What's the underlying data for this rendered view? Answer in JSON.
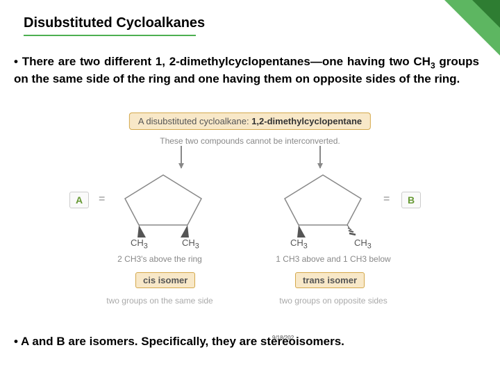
{
  "title": "Disubstituted Cycloalkanes",
  "bullet1_html": "• There are two different 1, 2-dimethylcyclopentanes—one having two CH<sub>3</sub> groups on the same side of the ring and one having them on opposite sides of the ring.",
  "banner": {
    "prefix": "A disubstituted cycloalkane: ",
    "bold": "1,2-dimethylcyclopentane",
    "bg": "#f8e8c8",
    "border": "#d4a84a"
  },
  "sub_banner": "These two compounds cannot be interconverted.",
  "left": {
    "label": "A",
    "ch3_a": "CH",
    "ch3_b": "CH",
    "ring_desc": "2 CH3's above the ring",
    "isomer": "cis isomer",
    "side_desc": "two groups on the same side"
  },
  "right": {
    "label": "B",
    "ch3_a": "CH",
    "ch3_b": "CH",
    "ring_desc": "1 CH3 above and 1 CH3 below",
    "isomer": "trans isomer",
    "side_desc": "two groups on opposite sides"
  },
  "equals": "=",
  "bullet2": "• A and B are isomers. Specifically, they are stereoisomers.",
  "date": "9/18/202",
  "colors": {
    "accent": "#4caf50",
    "accent_dark": "#2e7d32",
    "label_text": "#669933"
  },
  "pentagon": {
    "stroke": "#888888",
    "stroke_width": 1.5
  }
}
